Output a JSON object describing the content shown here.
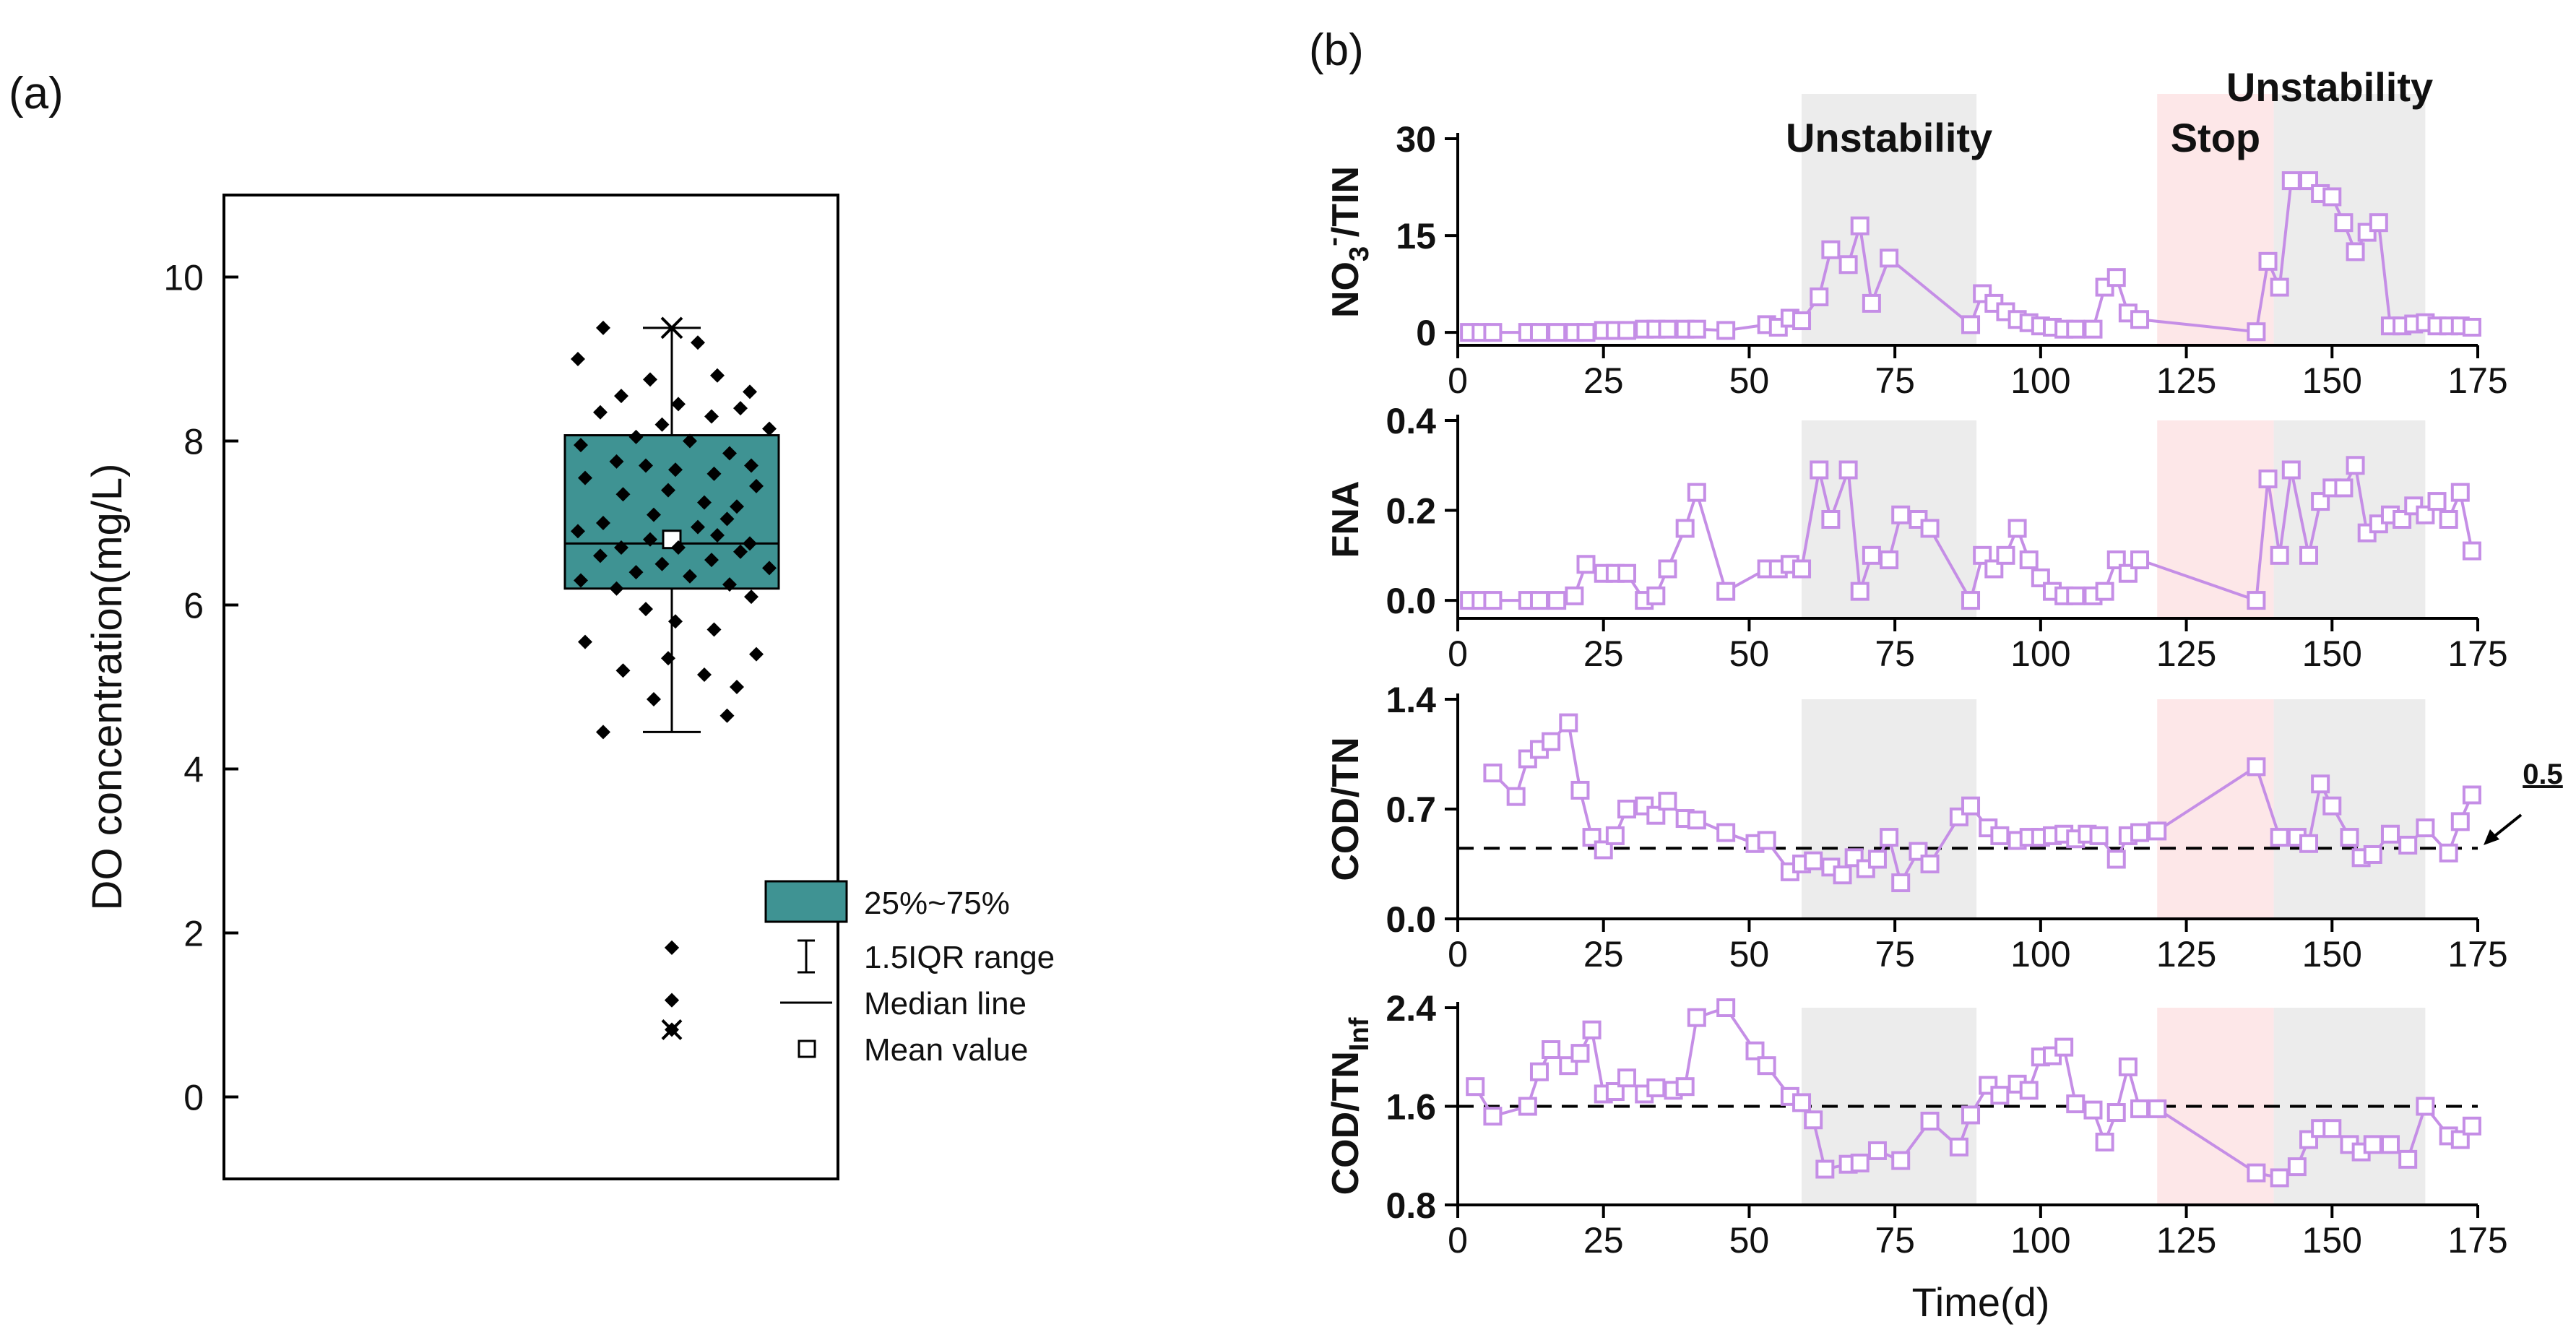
{
  "colors": {
    "box_fill": "#3f9393",
    "series": "#c58ee6",
    "unstable_band": "#ececec",
    "stop_band": "#fde7e8",
    "unstable_text": "#5a5a5a",
    "stop_text": "#e8141a"
  },
  "panel_a": {
    "label": "(a)"
  },
  "panel_b": {
    "label": "(b)",
    "regions": {
      "unstable_label": "Unstability",
      "stop_label": "Stop",
      "unstable1": [
        59,
        89
      ],
      "stop": [
        120,
        140
      ],
      "unstable2": [
        140,
        166
      ]
    },
    "xlabel": "Time(d)",
    "annotation": "0.5"
  },
  "chart_data": [
    {
      "type": "box",
      "title": "(a)",
      "ylabel": "DO concentration(mg/L)",
      "ylim": [
        -1,
        11
      ],
      "yticks": [
        0,
        2,
        4,
        6,
        8,
        10
      ],
      "box": {
        "q1": 6.2,
        "median": 6.75,
        "q3": 8.07,
        "mean": 6.8,
        "whisker_low": 4.45,
        "whisker_high": 9.38
      },
      "points": [
        9.38,
        9.2,
        9.0,
        8.8,
        8.75,
        8.6,
        8.55,
        8.45,
        8.4,
        8.35,
        8.3,
        8.2,
        8.15,
        8.05,
        8.0,
        7.95,
        7.85,
        7.75,
        7.7,
        7.7,
        7.65,
        7.6,
        7.55,
        7.45,
        7.4,
        7.35,
        7.25,
        7.2,
        7.1,
        7.05,
        7.0,
        6.95,
        6.9,
        6.85,
        6.8,
        6.75,
        6.7,
        6.7,
        6.65,
        6.6,
        6.55,
        6.5,
        6.45,
        6.4,
        6.35,
        6.3,
        6.25,
        6.2,
        6.1,
        5.95,
        5.8,
        5.7,
        5.55,
        5.4,
        5.35,
        5.2,
        5.15,
        5.0,
        4.85,
        4.65,
        4.45
      ],
      "outliers": [
        1.82,
        1.82,
        1.18,
        1.18,
        0.82
      ],
      "legend": [
        "25%~75%",
        "1.5IQR range",
        "Median line",
        "Mean value"
      ]
    },
    {
      "type": "line",
      "ylabel": "NO3-/TIN",
      "xlim": [
        0,
        175
      ],
      "ylim": [
        -2,
        30
      ],
      "xticks": [
        0,
        25,
        50,
        75,
        100,
        125,
        150,
        175
      ],
      "yticks": [
        0,
        15,
        30
      ],
      "x": [
        2,
        4,
        6,
        12,
        14,
        17,
        20,
        22,
        25,
        27,
        29,
        32,
        34,
        36,
        39,
        41,
        46,
        53,
        55,
        57,
        59,
        62,
        64,
        67,
        69,
        71,
        74,
        88,
        90,
        92,
        94,
        96,
        98,
        100,
        102,
        104,
        106,
        109,
        111,
        113,
        115,
        117,
        137,
        139,
        141,
        143,
        146,
        148,
        150,
        152,
        154,
        156,
        158,
        160,
        162,
        164,
        166,
        168,
        170,
        172,
        174
      ],
      "y": [
        0,
        0,
        0,
        0,
        0,
        0,
        0,
        0,
        0.3,
        0.3,
        0.3,
        0.5,
        0.5,
        0.5,
        0.5,
        0.5,
        0.3,
        1.2,
        0.8,
        2.2,
        1.8,
        5.5,
        12.8,
        10.5,
        16.5,
        4.5,
        11.5,
        1.2,
        6,
        4.5,
        3.2,
        2,
        1.5,
        1,
        0.8,
        0.5,
        0.5,
        0.5,
        7,
        8.5,
        3,
        2,
        0.1,
        11,
        7,
        23.5,
        23.5,
        21.5,
        21,
        17,
        12.5,
        15.5,
        17,
        1,
        1,
        1.3,
        1.5,
        1,
        1,
        1,
        0.8
      ]
    },
    {
      "type": "line",
      "ylabel": "FNA",
      "xlim": [
        0,
        175
      ],
      "ylim": [
        -0.04,
        0.4
      ],
      "xticks": [
        0,
        25,
        50,
        75,
        100,
        125,
        150,
        175
      ],
      "yticks": [
        0.0,
        0.2,
        0.4
      ],
      "x": [
        2,
        4,
        6,
        12,
        14,
        17,
        20,
        22,
        25,
        27,
        29,
        32,
        34,
        36,
        39,
        41,
        46,
        53,
        55,
        57,
        59,
        62,
        64,
        67,
        69,
        71,
        74,
        76,
        79,
        81,
        88,
        90,
        92,
        94,
        96,
        98,
        100,
        102,
        104,
        106,
        109,
        111,
        113,
        115,
        117,
        137,
        139,
        141,
        143,
        146,
        148,
        150,
        152,
        154,
        156,
        158,
        160,
        162,
        164,
        166,
        168,
        170,
        172,
        174
      ],
      "y": [
        0,
        0,
        0,
        0,
        0,
        0,
        0.01,
        0.08,
        0.06,
        0.06,
        0.06,
        0.0,
        0.01,
        0.07,
        0.16,
        0.24,
        0.02,
        0.07,
        0.07,
        0.08,
        0.07,
        0.29,
        0.18,
        0.29,
        0.02,
        0.1,
        0.09,
        0.19,
        0.18,
        0.16,
        0.0,
        0.1,
        0.07,
        0.1,
        0.16,
        0.09,
        0.05,
        0.02,
        0.01,
        0.01,
        0.01,
        0.02,
        0.09,
        0.06,
        0.09,
        0.0,
        0.27,
        0.1,
        0.29,
        0.1,
        0.22,
        0.25,
        0.25,
        0.3,
        0.15,
        0.17,
        0.19,
        0.18,
        0.21,
        0.19,
        0.22,
        0.18,
        0.24,
        0.11
      ]
    },
    {
      "type": "line",
      "ylabel": "COD/TN",
      "xlim": [
        0,
        175
      ],
      "ylim": [
        0,
        1.4
      ],
      "xticks": [
        0,
        25,
        50,
        75,
        100,
        125,
        150,
        175
      ],
      "yticks": [
        0.0,
        0.7,
        1.4
      ],
      "reference_line": 0.45,
      "x": [
        6,
        10,
        12,
        14,
        16,
        19,
        21,
        23,
        25,
        27,
        29,
        32,
        34,
        36,
        39,
        41,
        46,
        51,
        53,
        57,
        59,
        61,
        64,
        66,
        68,
        70,
        72,
        74,
        76,
        79,
        81,
        86,
        88,
        91,
        93,
        96,
        98,
        100,
        102,
        104,
        106,
        108,
        110,
        113,
        115,
        117,
        120,
        137,
        141,
        144,
        146,
        148,
        150,
        153,
        155,
        157,
        160,
        163,
        166,
        170,
        172,
        174
      ],
      "y": [
        0.93,
        0.78,
        1.02,
        1.08,
        1.13,
        1.25,
        0.82,
        0.52,
        0.44,
        0.53,
        0.7,
        0.72,
        0.66,
        0.75,
        0.64,
        0.63,
        0.55,
        0.48,
        0.5,
        0.3,
        0.35,
        0.37,
        0.33,
        0.28,
        0.39,
        0.32,
        0.38,
        0.52,
        0.23,
        0.43,
        0.35,
        0.65,
        0.72,
        0.58,
        0.53,
        0.5,
        0.52,
        0.52,
        0.53,
        0.54,
        0.51,
        0.54,
        0.53,
        0.38,
        0.53,
        0.55,
        0.56,
        0.97,
        0.52,
        0.52,
        0.48,
        0.86,
        0.72,
        0.52,
        0.39,
        0.41,
        0.54,
        0.47,
        0.58,
        0.42,
        0.62,
        0.79
      ]
    },
    {
      "type": "line",
      "ylabel": "COD/TNInf",
      "xlim": [
        0,
        175
      ],
      "ylim": [
        0.8,
        2.4
      ],
      "xticks": [
        0,
        25,
        50,
        75,
        100,
        125,
        150,
        175
      ],
      "yticks": [
        0.8,
        1.6,
        2.4
      ],
      "reference_line": 1.6,
      "x": [
        3,
        6,
        12,
        14,
        16,
        19,
        21,
        23,
        25,
        27,
        29,
        32,
        34,
        37,
        39,
        41,
        46,
        51,
        53,
        57,
        59,
        61,
        63,
        67,
        69,
        72,
        76,
        81,
        86,
        88,
        91,
        93,
        96,
        98,
        100,
        102,
        104,
        106,
        109,
        111,
        113,
        115,
        117,
        120,
        137,
        141,
        144,
        146,
        148,
        150,
        153,
        155,
        157,
        160,
        163,
        166,
        170,
        172,
        174
      ],
      "y": [
        1.76,
        1.52,
        1.6,
        1.88,
        2.06,
        1.93,
        2.03,
        2.22,
        1.7,
        1.72,
        1.83,
        1.7,
        1.75,
        1.73,
        1.76,
        2.32,
        2.4,
        2.05,
        1.93,
        1.68,
        1.63,
        1.49,
        1.09,
        1.13,
        1.14,
        1.24,
        1.16,
        1.48,
        1.27,
        1.53,
        1.77,
        1.69,
        1.78,
        1.73,
        2.0,
        2.01,
        2.08,
        1.62,
        1.57,
        1.31,
        1.55,
        1.92,
        1.58,
        1.58,
        1.06,
        1.02,
        1.11,
        1.33,
        1.42,
        1.42,
        1.29,
        1.23,
        1.29,
        1.29,
        1.17,
        1.6,
        1.36,
        1.33,
        1.44
      ]
    }
  ]
}
